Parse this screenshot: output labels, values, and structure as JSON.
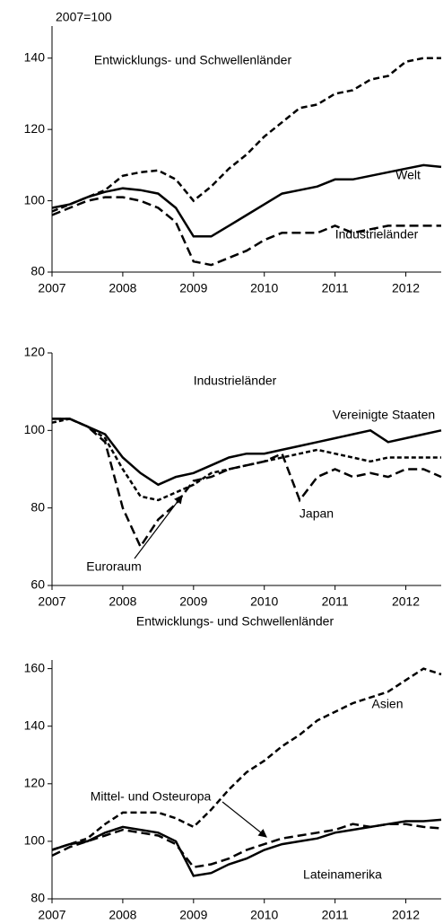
{
  "chart_data": [
    {
      "type": "line",
      "y_label": "2007=100",
      "x": [
        2007,
        2007.25,
        2007.5,
        2007.75,
        2008,
        2008.25,
        2008.5,
        2008.75,
        2009,
        2009.25,
        2009.5,
        2009.75,
        2010,
        2010.25,
        2010.5,
        2010.75,
        2011,
        2011.25,
        2011.5,
        2011.75,
        2012,
        2012.25,
        2012.5
      ],
      "xlim": [
        2007,
        2012.5
      ],
      "xticks": [
        2007,
        2008,
        2009,
        2010,
        2011,
        2012
      ],
      "ylim": [
        80,
        149
      ],
      "yticks": [
        80,
        100,
        120,
        140
      ],
      "series": [
        {
          "name": "Entwicklungs- und Schwellenländer",
          "color": "#000",
          "dash": "7,4",
          "values": [
            97,
            99,
            101,
            103,
            107,
            108,
            108.5,
            106,
            100,
            104,
            109,
            113,
            118,
            122,
            126,
            127,
            130,
            131,
            134,
            135,
            139,
            140,
            140
          ]
        },
        {
          "name": "Welt",
          "color": "#000",
          "dash": "none",
          "values": [
            98,
            99,
            101,
            102.5,
            103.5,
            103,
            102,
            98,
            90,
            90,
            93,
            96,
            99,
            102,
            103,
            104,
            106,
            106,
            107,
            108,
            109,
            110,
            109.5
          ]
        },
        {
          "name": "Industrieländer",
          "color": "#000",
          "dash": "10,5",
          "values": [
            96,
            98,
            100,
            101,
            101,
            100,
            98,
            94,
            83,
            82,
            84,
            86,
            89,
            91,
            91,
            91,
            93,
            91,
            92,
            93,
            93,
            93,
            93
          ]
        }
      ]
    },
    {
      "type": "line",
      "title": "Industrieländer",
      "x": [
        2007,
        2007.25,
        2007.5,
        2007.75,
        2008,
        2008.25,
        2008.5,
        2008.75,
        2009,
        2009.25,
        2009.5,
        2009.75,
        2010,
        2010.25,
        2010.5,
        2010.75,
        2011,
        2011.25,
        2011.5,
        2011.75,
        2012,
        2012.25,
        2012.5
      ],
      "xlim": [
        2007,
        2012.5
      ],
      "xticks": [
        2007,
        2008,
        2009,
        2010,
        2011,
        2012
      ],
      "ylim": [
        60,
        120
      ],
      "yticks": [
        60,
        80,
        100,
        120
      ],
      "series": [
        {
          "name": "Vereinigte Staaten",
          "color": "#000",
          "dash": "none",
          "values": [
            103,
            103,
            101,
            99,
            93,
            89,
            86,
            88,
            89,
            91,
            93,
            94,
            94,
            95,
            96,
            97,
            98,
            99,
            100,
            97,
            98,
            99,
            100
          ]
        },
        {
          "name": "Euroraum",
          "color": "#000",
          "dash": "5,3",
          "values": [
            102,
            103,
            101,
            98,
            90,
            83,
            82,
            84,
            86,
            89,
            90,
            91,
            92,
            93,
            94,
            95,
            94,
            93,
            92,
            93,
            93,
            93,
            93
          ]
        },
        {
          "name": "Japan",
          "color": "#000",
          "dash": "10,5",
          "values": [
            103,
            103,
            101,
            97,
            80,
            70,
            77,
            81,
            87,
            88,
            90,
            91,
            92,
            94,
            82,
            88,
            90,
            88,
            89,
            88,
            90,
            90,
            88
          ]
        }
      ]
    },
    {
      "type": "line",
      "title": "Entwicklungs- und Schwellenländer",
      "x": [
        2007,
        2007.25,
        2007.5,
        2007.75,
        2008,
        2008.25,
        2008.5,
        2008.75,
        2009,
        2009.25,
        2009.5,
        2009.75,
        2010,
        2010.25,
        2010.5,
        2010.75,
        2011,
        2011.25,
        2011.5,
        2011.75,
        2012,
        2012.25,
        2012.5
      ],
      "xlim": [
        2007,
        2012.5
      ],
      "xticks": [
        2007,
        2008,
        2009,
        2010,
        2011,
        2012
      ],
      "ylim": [
        80,
        163
      ],
      "yticks": [
        80,
        100,
        120,
        140,
        160
      ],
      "series": [
        {
          "name": "Asien",
          "color": "#000",
          "dash": "7,4",
          "values": [
            97,
            99,
            101,
            106,
            110,
            110,
            110,
            108,
            105,
            111,
            118,
            124,
            128,
            133,
            137,
            142,
            145,
            148,
            150,
            152,
            156,
            160,
            158
          ]
        },
        {
          "name": "Mittel- und Osteuropa",
          "color": "#000",
          "dash": "10,5",
          "values": [
            95,
            98,
            100,
            102,
            104,
            103,
            102,
            99,
            91,
            92,
            94,
            97,
            99,
            101,
            102,
            103,
            104,
            106,
            105,
            106,
            106,
            105,
            104.5
          ]
        },
        {
          "name": "Lateinamerika",
          "color": "#000",
          "dash": "none",
          "values": [
            97,
            99,
            100,
            103,
            105,
            104,
            103,
            100,
            88,
            89,
            92,
            94,
            97,
            99,
            100,
            101,
            103,
            104,
            105,
            106,
            107,
            107,
            107.5
          ]
        }
      ]
    }
  ]
}
